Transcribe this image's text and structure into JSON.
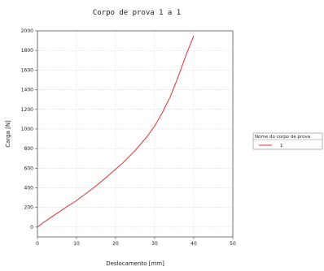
{
  "chart_data": {
    "type": "line",
    "title": "Corpo de prova 1 a 1",
    "xlabel": "Deslocamento [mm]",
    "ylabel": "Carga [N]",
    "xlim": [
      0,
      50
    ],
    "ylim": [
      -100,
      2000
    ],
    "xticks": [
      0,
      10,
      20,
      30,
      40,
      50
    ],
    "yticks": [
      0,
      200,
      400,
      600,
      800,
      1000,
      1200,
      1400,
      1600,
      1800,
      2000
    ],
    "grid": true,
    "legend": {
      "title": "Nome do corpo de prova",
      "placement": "right",
      "entries": [
        "1"
      ]
    },
    "series": [
      {
        "name": "1",
        "color": "#e03030",
        "x": [
          0,
          2,
          5,
          8,
          10,
          12,
          15,
          18,
          20,
          22,
          25,
          28,
          30,
          32,
          34,
          36,
          38,
          40
        ],
        "y": [
          0,
          60,
          140,
          220,
          270,
          330,
          420,
          520,
          590,
          660,
          780,
          920,
          1030,
          1170,
          1330,
          1530,
          1750,
          1950
        ]
      }
    ]
  }
}
